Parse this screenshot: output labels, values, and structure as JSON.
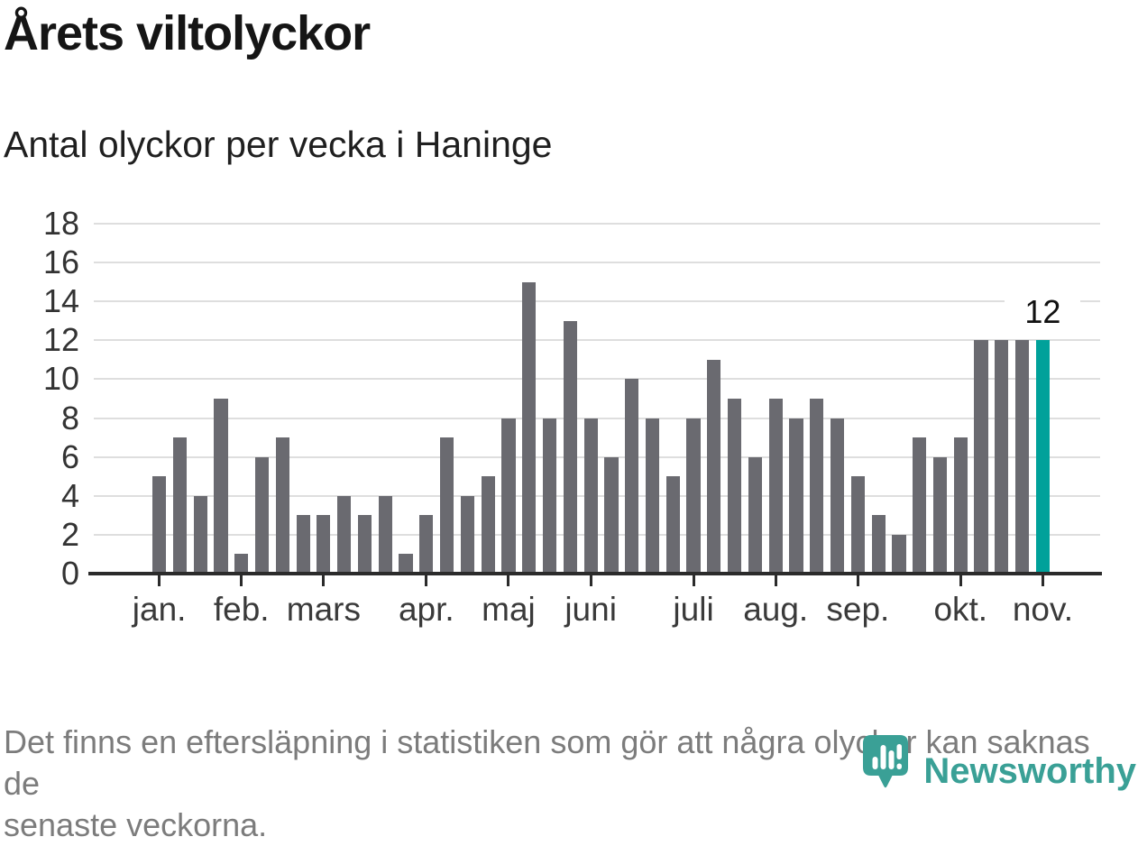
{
  "header": {
    "title": "Årets viltolyckor",
    "subtitle": "Antal olyckor per vecka i Haninge"
  },
  "chart_data": {
    "type": "bar",
    "title": "Årets viltolyckor",
    "subtitle": "Antal olyckor per vecka i Haninge",
    "x_unit": "vecka",
    "values": [
      5,
      7,
      4,
      9,
      1,
      6,
      7,
      3,
      3,
      4,
      3,
      4,
      1,
      3,
      7,
      4,
      5,
      8,
      15,
      8,
      13,
      8,
      6,
      10,
      8,
      5,
      8,
      11,
      9,
      6,
      9,
      8,
      9,
      8,
      5,
      3,
      2,
      7,
      6,
      7,
      12,
      12,
      12,
      12
    ],
    "highlight_index": 43,
    "highlight_label": "12",
    "month_ticks": [
      {
        "label": "jan.",
        "week_index": 0
      },
      {
        "label": "feb.",
        "week_index": 4
      },
      {
        "label": "mars",
        "week_index": 8
      },
      {
        "label": "apr.",
        "week_index": 13
      },
      {
        "label": "maj",
        "week_index": 17
      },
      {
        "label": "juni",
        "week_index": 21
      },
      {
        "label": "juli",
        "week_index": 26
      },
      {
        "label": "aug.",
        "week_index": 30
      },
      {
        "label": "sep.",
        "week_index": 34
      },
      {
        "label": "okt.",
        "week_index": 39
      },
      {
        "label": "nov.",
        "week_index": 43
      }
    ],
    "ylim": [
      0,
      18
    ],
    "yticks": [
      0,
      2,
      4,
      6,
      8,
      10,
      12,
      14,
      16,
      18
    ],
    "grid": "horizontal",
    "legend": "none",
    "colors": {
      "bar": "#6a6a70",
      "highlight": "#00a19a",
      "grid": "#dedede",
      "axis": "#2b2b2b"
    }
  },
  "footer": {
    "lines": [
      "Det finns en eftersläpning i statistiken som gör att några olyckor kan saknas de",
      "senaste veckorna."
    ]
  },
  "logo": {
    "wordmark": "Newsworthy",
    "color": "#3aa096",
    "icon": "newsworthy-pin-barchart-icon"
  }
}
